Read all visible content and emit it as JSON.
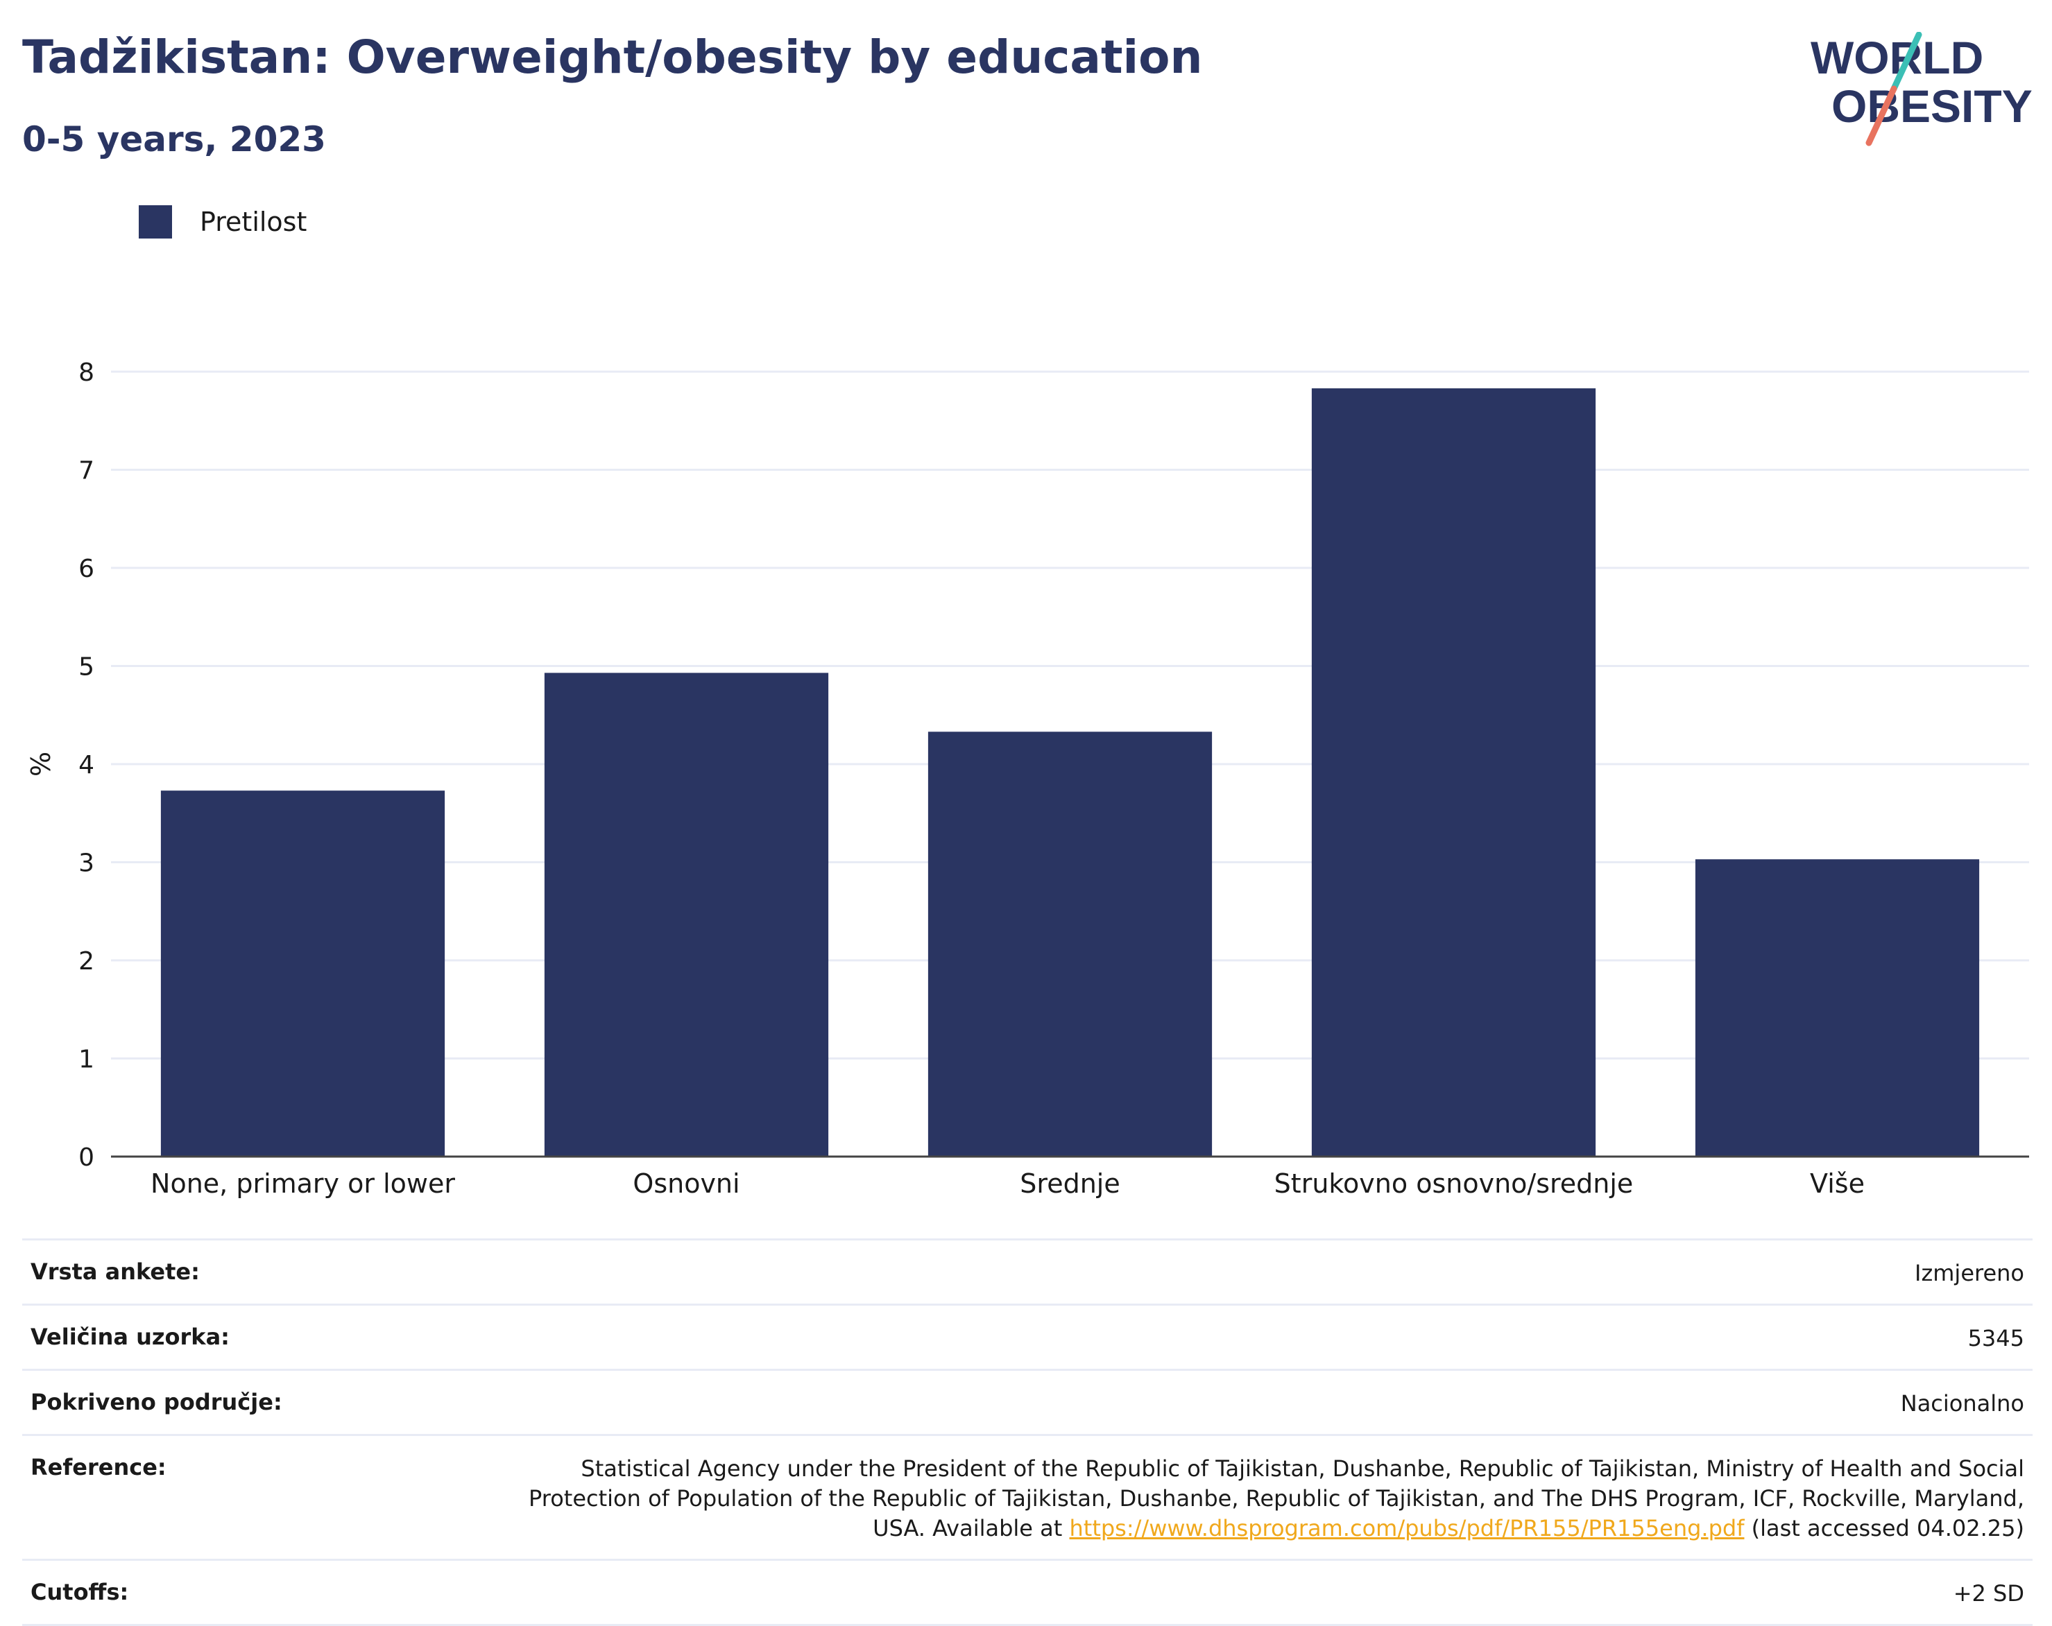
{
  "header": {
    "title": "Tadžikistan: Overweight/obesity by education",
    "subtitle": "0-5 years, 2023"
  },
  "logo": {
    "line1": "WORLD",
    "line2": "OBESITY"
  },
  "legend": {
    "label": "Pretilost",
    "color": "#2a3562"
  },
  "chart_data": {
    "type": "bar",
    "categories": [
      "None, primary or lower",
      "Osnovni",
      "Srednje",
      "Strukovno osnovno/srednje",
      "Više"
    ],
    "series": [
      {
        "name": "Pretilost",
        "values": [
          3.73,
          4.93,
          4.33,
          7.83,
          3.03
        ]
      }
    ],
    "xlabel": "",
    "ylabel": "%",
    "ylim": [
      0,
      8
    ],
    "yticks": [
      "0",
      "1",
      "2",
      "3",
      "4",
      "5",
      "6",
      "7",
      "8"
    ],
    "grid": true,
    "bar_color": "#2a3562",
    "legend_position": "top-left"
  },
  "info": {
    "survey_type": {
      "label": "Vrsta ankete:",
      "value": "Izmjereno"
    },
    "sample_size": {
      "label": "Veličina uzorka:",
      "value": "5345"
    },
    "coverage": {
      "label": "Pokriveno područje:",
      "value": "Nacionalno"
    },
    "reference": {
      "label": "Reference:",
      "text_before": "Statistical Agency under the President of the Republic of Tajikistan, Dushanbe, Republic of Tajikistan, Ministry of Health and Social Protection of Population of the Republic of Tajikistan, Dushanbe, Republic of Tajikistan, and The DHS Program, ICF, Rockville, Maryland, USA. Available at ",
      "link": "https://www.dhsprogram.com/pubs/pdf/PR155/PR155eng.pdf",
      "text_after": " (last accessed 04.02.25)"
    },
    "cutoffs": {
      "label": "Cutoffs:",
      "value": "+2 SD"
    }
  },
  "colors": {
    "accent": "#2a3562",
    "grid": "#e8ebf5",
    "link": "#f0a81c",
    "logo_teal": "#3bbfb5",
    "logo_coral": "#e8735f"
  }
}
